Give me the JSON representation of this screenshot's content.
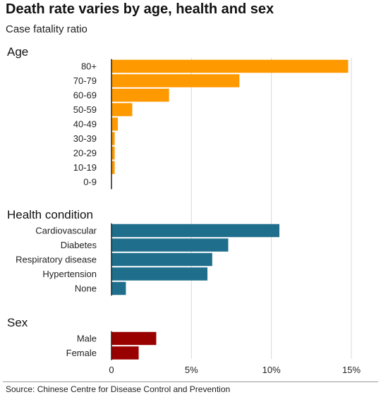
{
  "title": "Death rate varies by age, health and sex",
  "subtitle": "Case fatality ratio",
  "source": "Source: Chinese Centre for Disease Control and Prevention",
  "colors": {
    "age": "#FF9900",
    "health": "#1F6E8C",
    "sex": "#990000",
    "grid": "#D9D9D9",
    "axis": "#222222"
  },
  "chart_data": {
    "type": "bar",
    "orientation": "horizontal",
    "unit": "%",
    "xlim": [
      0,
      15
    ],
    "ticks": [
      0,
      5,
      10,
      15
    ],
    "tick_labels": [
      "0",
      "5%",
      "10%",
      "15%"
    ],
    "grid": true,
    "groups": [
      {
        "name": "Age",
        "categories": [
          "80+",
          "70-79",
          "60-69",
          "50-59",
          "40-49",
          "30-39",
          "20-29",
          "10-19",
          "0-9"
        ],
        "values": [
          14.8,
          8.0,
          3.6,
          1.3,
          0.4,
          0.2,
          0.2,
          0.2,
          0.0
        ]
      },
      {
        "name": "Health condition",
        "categories": [
          "Cardiovascular",
          "Diabetes",
          "Respiratory disease",
          "Hypertension",
          "None"
        ],
        "values": [
          10.5,
          7.3,
          6.3,
          6.0,
          0.9
        ]
      },
      {
        "name": "Sex",
        "categories": [
          "Male",
          "Female"
        ],
        "values": [
          2.8,
          1.7
        ]
      }
    ]
  }
}
